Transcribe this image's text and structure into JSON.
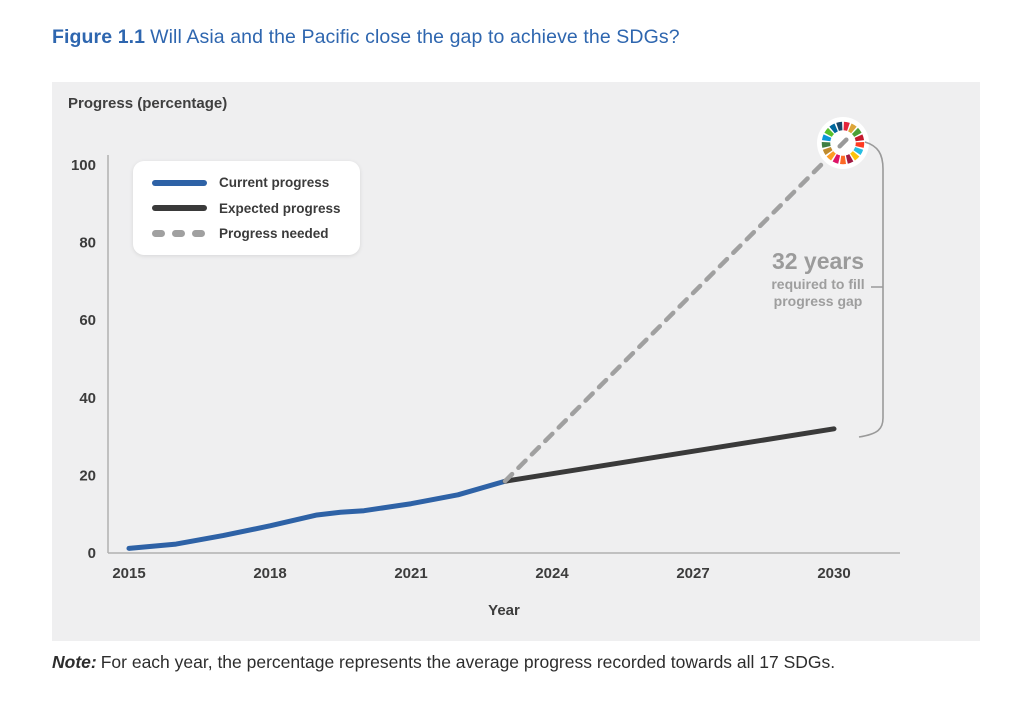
{
  "figure": {
    "label": "Figure 1.1",
    "title": "Will Asia and the Pacific close the gap to achieve the SDGs?"
  },
  "note": {
    "label": "Note:",
    "text": "For each year, the percentage represents the average progress recorded towards all 17 SDGs."
  },
  "colors": {
    "title_blue": "#2E66AF",
    "panel_bg": "#EFEFF0",
    "axis": "#B0B0B0",
    "tick_text": "#3C3C3C",
    "annotation_gray": "#9B9B9B",
    "bracket_gray": "#9A9A9A"
  },
  "chart_data": {
    "type": "line",
    "title": "",
    "ylabel": "Progress (percentage)",
    "xlabel": "Year",
    "ylim": [
      0,
      100
    ],
    "xlim": [
      2015,
      2030
    ],
    "y_ticks": [
      0,
      20,
      40,
      60,
      80,
      100
    ],
    "x_ticks": [
      2015,
      2018,
      2021,
      2024,
      2027,
      2030
    ],
    "grid": false,
    "legend_position": "top-left",
    "series": [
      {
        "name": "Current progress",
        "color": "#2E62A6",
        "style": "solid",
        "points": [
          [
            2015,
            1.2
          ],
          [
            2016,
            2.3
          ],
          [
            2017,
            4.5
          ],
          [
            2018,
            7.0
          ],
          [
            2019,
            9.8
          ],
          [
            2019.5,
            10.5
          ],
          [
            2020,
            10.9
          ],
          [
            2021,
            12.7
          ],
          [
            2022,
            15.0
          ],
          [
            2023,
            18.5
          ]
        ]
      },
      {
        "name": "Expected progress",
        "color": "#3A3A3A",
        "style": "solid",
        "points": [
          [
            2023,
            18.5
          ],
          [
            2030,
            32
          ]
        ]
      },
      {
        "name": "Progress needed",
        "color": "#A0A0A0",
        "style": "dashed",
        "points": [
          [
            2023,
            18.5
          ],
          [
            2030,
            100
          ]
        ]
      }
    ],
    "annotation": {
      "big": "32 years",
      "small_line1": "required to fill",
      "small_line2": "progress gap"
    },
    "sdg_wheel_colors": [
      "#E5243B",
      "#DDA63A",
      "#4C9F38",
      "#C5192D",
      "#FF3A21",
      "#26BDE2",
      "#FCC30B",
      "#A21942",
      "#FD6925",
      "#DD1367",
      "#FD9D24",
      "#BF8B2E",
      "#3F7E44",
      "#0A97D9",
      "#56C02B",
      "#00689D",
      "#19486A"
    ]
  }
}
